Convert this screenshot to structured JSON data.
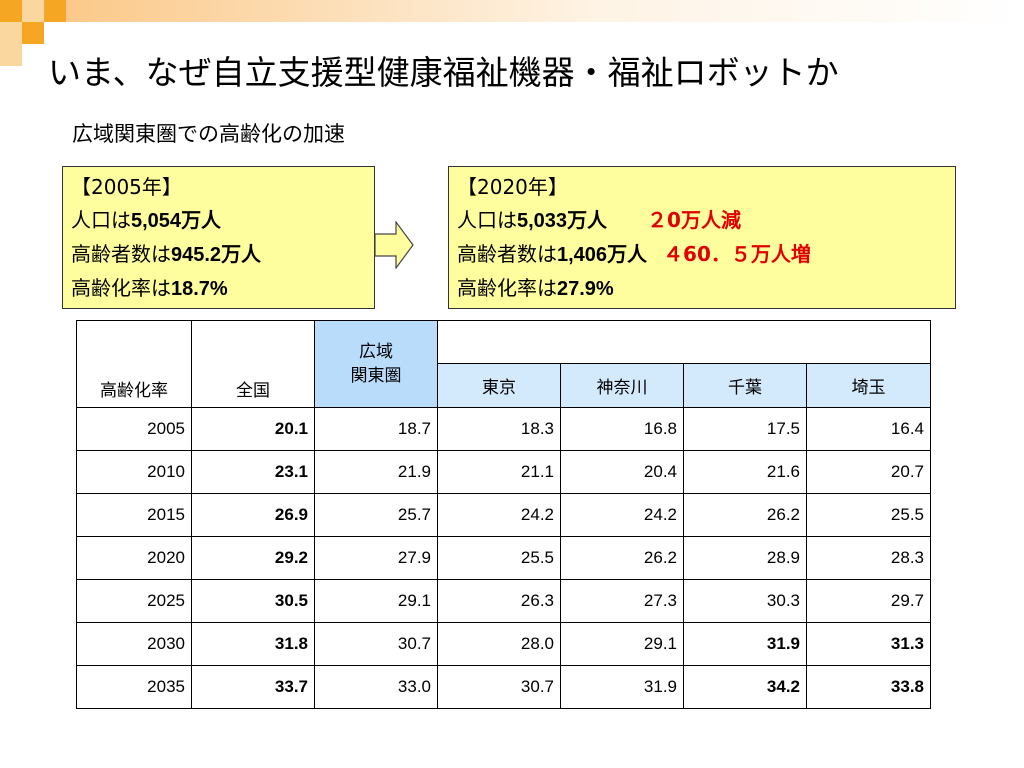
{
  "slide": {
    "title": "いま、なぜ自立支援型健康福祉機器・福祉ロボットか",
    "subtitle": "広域関東圏での高齢化の加速"
  },
  "box2005": {
    "heading": "【2005年】",
    "pop_prefix": "人口は",
    "pop_value": "5,054",
    "pop_unit": "万人",
    "elderly_prefix": "高齢者数は",
    "elderly_value": "945.2",
    "elderly_unit": "万人",
    "rate_prefix": "高齢化率は",
    "rate_value": "18.7%"
  },
  "box2020": {
    "heading": "【2020年】",
    "pop_prefix": "人口は",
    "pop_value": "5,033",
    "pop_unit": "万人",
    "pop_change": "２0万人減",
    "elderly_prefix": "高齢者数は",
    "elderly_value": "1,406",
    "elderly_unit": "万人",
    "elderly_change": "４60．５万人増",
    "rate_prefix": "高齢化率は",
    "rate_value": "27.9%"
  },
  "colors": {
    "highlight": "#b9dcfb",
    "box_fill": "#fffe9e",
    "accent_orange": "#f5a623",
    "red": "#e00000"
  },
  "table": {
    "headers": {
      "rate": "高齢化率",
      "national": "全国",
      "kanto_line1": "広域",
      "kanto_line2": "関東圏",
      "tokyo": "東京",
      "kanagawa": "神奈川",
      "chiba": "千葉",
      "saitama": "埼玉"
    },
    "rows": [
      {
        "year": "2005",
        "national": "20.1",
        "kanto": "18.7",
        "tokyo": "18.3",
        "kanagawa": "16.8",
        "chiba": "17.5",
        "saitama": "16.4"
      },
      {
        "year": "2010",
        "national": "23.1",
        "kanto": "21.9",
        "tokyo": "21.1",
        "kanagawa": "20.4",
        "chiba": "21.6",
        "saitama": "20.7"
      },
      {
        "year": "2015",
        "national": "26.9",
        "kanto": "25.7",
        "tokyo": "24.2",
        "kanagawa": "24.2",
        "chiba": "26.2",
        "saitama": "25.5"
      },
      {
        "year": "2020",
        "national": "29.2",
        "kanto": "27.9",
        "tokyo": "25.5",
        "kanagawa": "26.2",
        "chiba": "28.9",
        "saitama": "28.3"
      },
      {
        "year": "2025",
        "national": "30.5",
        "kanto": "29.1",
        "tokyo": "26.3",
        "kanagawa": "27.3",
        "chiba": "30.3",
        "saitama": "29.7"
      },
      {
        "year": "2030",
        "national": "31.8",
        "kanto": "30.7",
        "tokyo": "28.0",
        "kanagawa": "29.1",
        "chiba": "31.9",
        "saitama": "31.3"
      },
      {
        "year": "2035",
        "national": "33.7",
        "kanto": "33.0",
        "tokyo": "30.7",
        "kanagawa": "31.9",
        "chiba": "34.2",
        "saitama": "33.8"
      }
    ]
  }
}
